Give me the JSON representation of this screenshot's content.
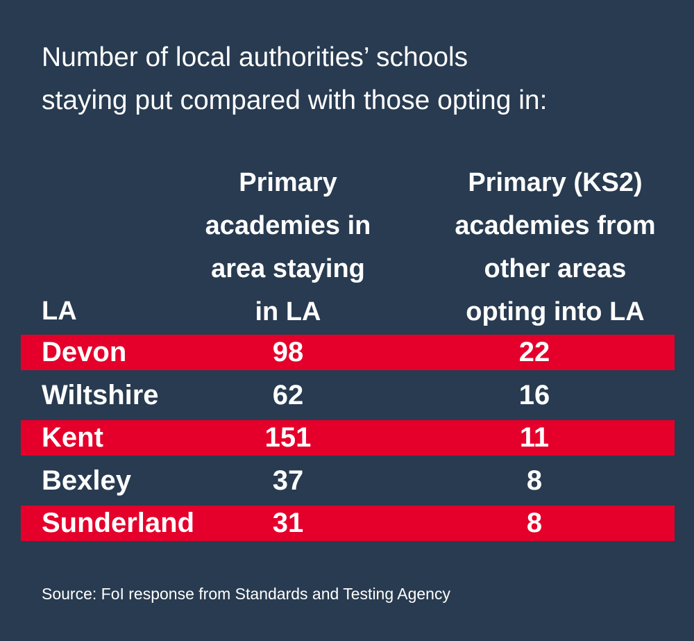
{
  "title_line1": "Number of local authorities’ schools",
  "title_line2": "staying put compared with those opting in:",
  "chart_data": {
    "type": "table",
    "columns": [
      "LA",
      "Primary academies in area staying in LA",
      "Primary (KS2) academies from other areas opting into LA"
    ],
    "header_lines": {
      "col1": [
        "LA"
      ],
      "col2": [
        "Primary",
        "academies in",
        "area staying",
        "in LA"
      ],
      "col3": [
        "Primary (KS2)",
        "academies from",
        "other areas",
        "opting into LA"
      ]
    },
    "rows": [
      {
        "la": "Devon",
        "staying": "98",
        "opting_in": "22",
        "highlight": true
      },
      {
        "la": "Wiltshire",
        "staying": "62",
        "opting_in": "16",
        "highlight": false
      },
      {
        "la": "Kent",
        "staying": "151",
        "opting_in": "11",
        "highlight": true
      },
      {
        "la": "Bexley",
        "staying": "37",
        "opting_in": "8",
        "highlight": false
      },
      {
        "la": "Sunderland",
        "staying": "31",
        "opting_in": "8",
        "highlight": true
      }
    ]
  },
  "source": "Source: FoI response from Standards and Testing Agency",
  "colors": {
    "background": "#283b50",
    "highlight": "#e4002b",
    "text": "#ffffff"
  }
}
